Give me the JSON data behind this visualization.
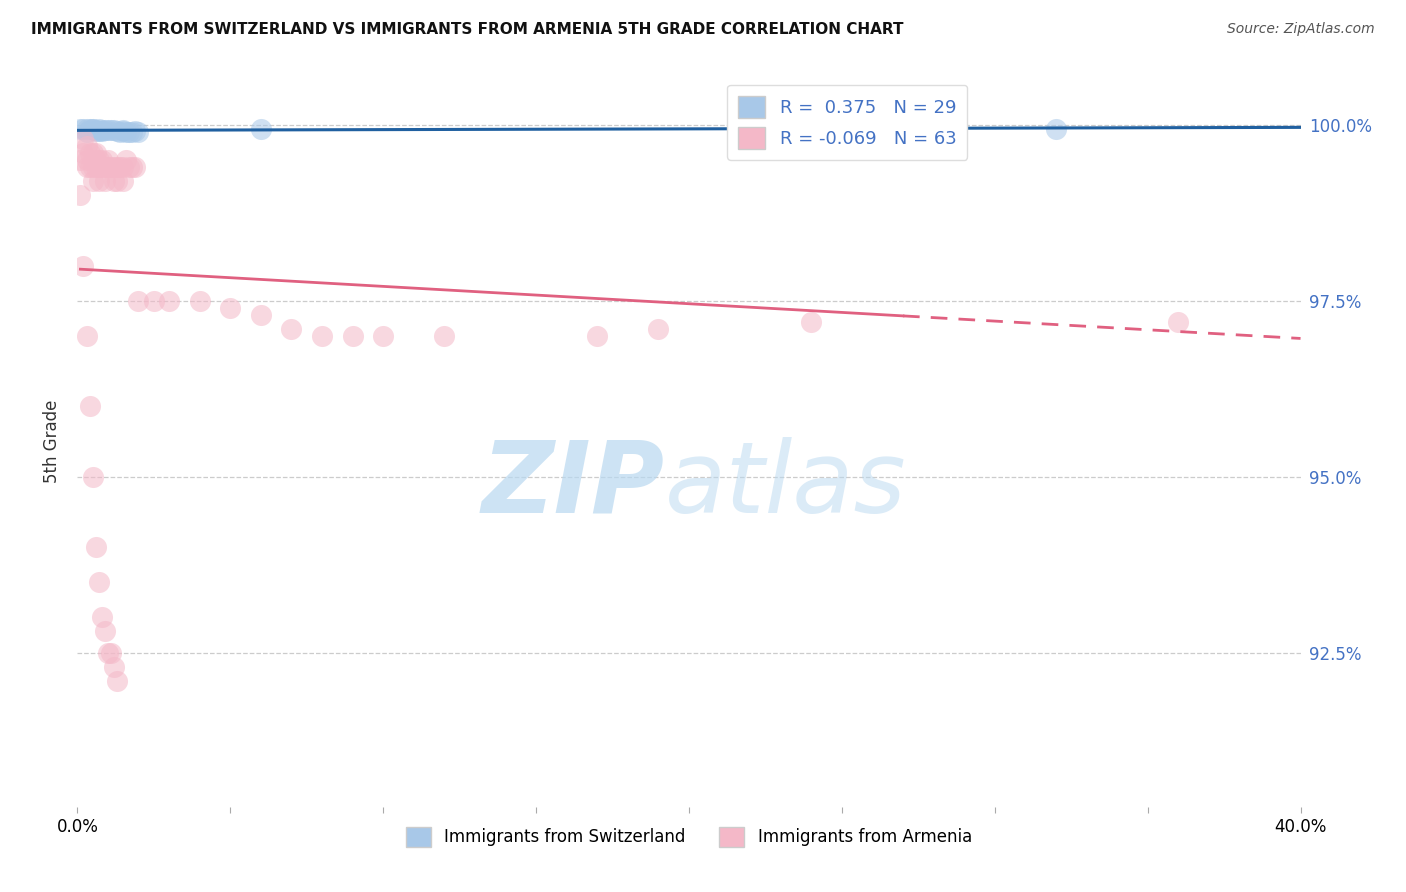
{
  "title": "IMMIGRANTS FROM SWITZERLAND VS IMMIGRANTS FROM ARMENIA 5TH GRADE CORRELATION CHART",
  "source": "Source: ZipAtlas.com",
  "ylabel": "5th Grade",
  "series1_name": "Immigrants from Switzerland",
  "series2_name": "Immigrants from Armenia",
  "blue_fill": "#a8c8e8",
  "blue_edge": "#a8c8e8",
  "pink_fill": "#f4b8c8",
  "pink_edge": "#f4b8c8",
  "blue_line_color": "#2060a0",
  "pink_line_color": "#e06080",
  "blue_R": 0.375,
  "blue_N": 29,
  "pink_R": -0.069,
  "pink_N": 63,
  "xlim": [
    0.0,
    0.4
  ],
  "ylim": [
    0.903,
    1.007
  ],
  "ytick_values": [
    0.925,
    0.95,
    0.975,
    1.0
  ],
  "ytick_labels": [
    "92.5%",
    "95.0%",
    "97.5%",
    "100.0%"
  ],
  "blue_x": [
    0.001,
    0.002,
    0.003,
    0.003,
    0.004,
    0.005,
    0.005,
    0.006,
    0.006,
    0.007,
    0.007,
    0.008,
    0.008,
    0.009,
    0.01,
    0.011,
    0.012,
    0.013,
    0.014,
    0.015,
    0.015,
    0.016,
    0.017,
    0.018,
    0.019,
    0.02,
    0.06,
    0.22,
    0.32
  ],
  "blue_y": [
    0.9995,
    0.9995,
    0.9995,
    0.999,
    0.9995,
    0.9995,
    0.9995,
    0.9993,
    0.9992,
    0.9995,
    0.9992,
    0.9993,
    0.9991,
    0.9993,
    0.9993,
    0.9993,
    0.9993,
    0.9991,
    0.999,
    0.9991,
    0.9993,
    0.999,
    0.999,
    0.999,
    0.9992,
    0.999,
    0.9995,
    0.9995,
    0.9995
  ],
  "pink_x": [
    0.001,
    0.002,
    0.002,
    0.003,
    0.003,
    0.003,
    0.004,
    0.004,
    0.005,
    0.005,
    0.005,
    0.006,
    0.006,
    0.006,
    0.007,
    0.007,
    0.007,
    0.008,
    0.008,
    0.009,
    0.009,
    0.01,
    0.01,
    0.011,
    0.012,
    0.012,
    0.013,
    0.013,
    0.014,
    0.015,
    0.015,
    0.016,
    0.017,
    0.018,
    0.019,
    0.02,
    0.025,
    0.03,
    0.04,
    0.05,
    0.06,
    0.07,
    0.08,
    0.09,
    0.1,
    0.12,
    0.17,
    0.19,
    0.24,
    0.36,
    0.001,
    0.002,
    0.003,
    0.004,
    0.005,
    0.006,
    0.007,
    0.008,
    0.009,
    0.01,
    0.011,
    0.012,
    0.013
  ],
  "pink_y": [
    0.995,
    0.996,
    0.998,
    0.997,
    0.995,
    0.994,
    0.996,
    0.994,
    0.996,
    0.994,
    0.992,
    0.994,
    0.996,
    0.995,
    0.995,
    0.994,
    0.992,
    0.995,
    0.994,
    0.994,
    0.992,
    0.994,
    0.995,
    0.994,
    0.994,
    0.992,
    0.994,
    0.992,
    0.994,
    0.994,
    0.992,
    0.995,
    0.994,
    0.994,
    0.994,
    0.975,
    0.975,
    0.975,
    0.975,
    0.974,
    0.973,
    0.971,
    0.97,
    0.97,
    0.97,
    0.97,
    0.97,
    0.971,
    0.972,
    0.972,
    0.99,
    0.98,
    0.97,
    0.96,
    0.95,
    0.94,
    0.935,
    0.93,
    0.928,
    0.925,
    0.925,
    0.923,
    0.921
  ]
}
